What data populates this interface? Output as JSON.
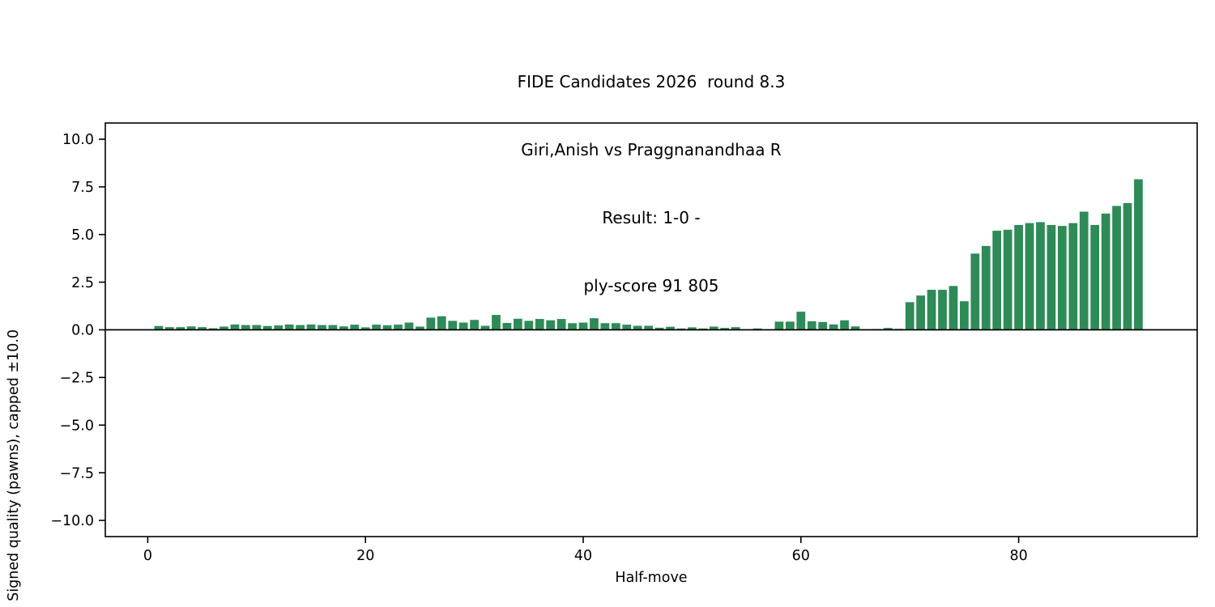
{
  "figure": {
    "title_lines": [
      "FIDE Candidates 2026  round 8.3",
      "Giri,Anish vs Praggnanandhaa R",
      "Result: 1-0 -",
      "ply-score 91 805"
    ],
    "xlabel": "Half-move",
    "ylabel": "Signed quality (pawns), capped ±10.0"
  },
  "chart_data": {
    "type": "bar",
    "title": "FIDE Candidates 2026  round 8.3\nGiri,Anish vs Praggnanandhaa R\nResult: 1-0 -\nply-score 91 805",
    "xlabel": "Half-move",
    "ylabel": "Signed quality (pawns), capped ±10.0",
    "bar_color": "#2e8b57",
    "axis_color": "#000000",
    "background": "#ffffff",
    "grid": false,
    "legend": "none",
    "zero_line": true,
    "xlim": [
      -3.9,
      96.4
    ],
    "ylim": [
      -10.85,
      10.85
    ],
    "x_ticks": [
      0,
      20,
      40,
      60,
      80
    ],
    "y_ticks": [
      10.0,
      7.5,
      5.0,
      2.5,
      0.0,
      -2.5,
      -5.0,
      -7.5,
      -10.0
    ],
    "y_tick_labels": [
      "10.0",
      "7.5",
      "5.0",
      "2.5",
      "0.0",
      "−2.5",
      "−5.0",
      "−7.5",
      "−10.0"
    ],
    "x": [
      1,
      2,
      3,
      4,
      5,
      6,
      7,
      8,
      9,
      10,
      11,
      12,
      13,
      14,
      15,
      16,
      17,
      18,
      19,
      20,
      21,
      22,
      23,
      24,
      25,
      26,
      27,
      28,
      29,
      30,
      31,
      32,
      33,
      34,
      35,
      36,
      37,
      38,
      39,
      40,
      41,
      42,
      43,
      44,
      45,
      46,
      47,
      48,
      49,
      50,
      51,
      52,
      53,
      54,
      55,
      56,
      57,
      58,
      59,
      60,
      61,
      62,
      63,
      64,
      65,
      66,
      67,
      68,
      69,
      70,
      71,
      72,
      73,
      74,
      75,
      76,
      77,
      78,
      79,
      80,
      81,
      82,
      83,
      84,
      85,
      86,
      87,
      88,
      89,
      90,
      91
    ],
    "values": [
      0.2,
      0.14,
      0.14,
      0.18,
      0.14,
      0.08,
      0.17,
      0.28,
      0.25,
      0.25,
      0.2,
      0.23,
      0.28,
      0.25,
      0.28,
      0.25,
      0.25,
      0.18,
      0.27,
      0.13,
      0.27,
      0.24,
      0.27,
      0.38,
      0.17,
      0.64,
      0.71,
      0.47,
      0.38,
      0.52,
      0.21,
      0.78,
      0.36,
      0.58,
      0.47,
      0.57,
      0.5,
      0.57,
      0.35,
      0.38,
      0.61,
      0.35,
      0.35,
      0.27,
      0.21,
      0.21,
      0.11,
      0.16,
      0.07,
      0.13,
      0.07,
      0.17,
      0.1,
      0.14,
      0.02,
      0.07,
      0.01,
      0.43,
      0.43,
      0.95,
      0.45,
      0.41,
      0.28,
      0.5,
      0.18,
      0.02,
      0.04,
      0.1,
      0.05,
      1.45,
      1.8,
      2.1,
      2.1,
      2.3,
      1.5,
      4.0,
      4.4,
      5.2,
      5.25,
      5.5,
      5.6,
      5.65,
      5.5,
      5.45,
      5.6,
      6.2,
      5.5,
      6.1,
      6.5,
      6.65,
      7.9
    ]
  }
}
